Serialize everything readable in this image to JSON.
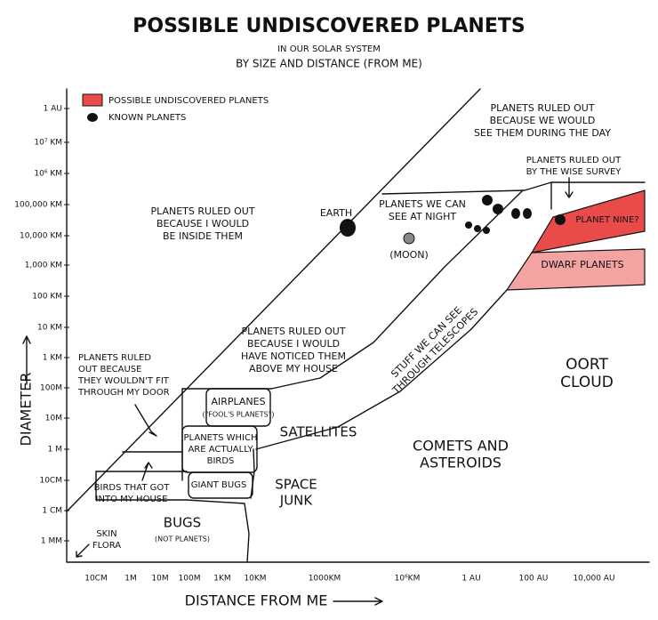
{
  "title": "POSSIBLE UNDISCOVERED PLANETS",
  "subtitle": [
    "IN OUR SOLAR SYSTEM",
    "BY SIZE AND DISTANCE (FROM ME)"
  ],
  "legend": [
    "POSSIBLE UNDISCOVERED PLANETS",
    "KNOWN PLANETS"
  ],
  "y_axis": {
    "title": "DIAMETER",
    "ticks": [
      "1 AU",
      "10⁷ KM",
      "10⁶ KM",
      "100,000 KM",
      "10,000 KM",
      "1,000 KM",
      "100 KM",
      "10 KM",
      "1 KM",
      "100M",
      "10M",
      "1 M",
      "10CM",
      "1 CM",
      "1 MM"
    ]
  },
  "x_axis": {
    "title": "DISTANCE FROM ME",
    "ticks": [
      "10CM",
      "1M",
      "10M",
      "100M",
      "1KM",
      "10KM",
      "1000KM",
      "10⁶KM",
      "1 AU",
      "100 AU",
      "10,000 AU"
    ]
  },
  "regions": [
    [
      "PLANETS RULED OUT",
      "BECAUSE I WOULD",
      "BE INSIDE THEM"
    ],
    [
      "EARTH"
    ],
    [
      "PLANETS WE CAN",
      "SEE AT NIGHT"
    ],
    [
      "(MOON)"
    ],
    [
      "PLANETS RULED OUT",
      "BECAUSE WE WOULD",
      "SEE THEM DURING THE DAY"
    ],
    [
      "PLANETS RULED OUT",
      "BY THE WISE SURVEY"
    ],
    [
      "PLANET NINE?"
    ],
    [
      "DWARF PLANETS"
    ],
    [
      "PLANETS RULED OUT",
      "BECAUSE I WOULD",
      "HAVE NOTICED THEM",
      "ABOVE MY HOUSE"
    ],
    [
      "STUFF WE CAN SEE",
      "THROUGH TELESCOPES"
    ],
    [
      "OORT",
      "CLOUD"
    ],
    [
      "PLANETS RULED",
      "OUT BECAUSE",
      "THEY WOULDN'T FIT",
      "THROUGH MY DOOR"
    ],
    [
      "AIRPLANES",
      "(\"FOOL'S PLANETS\")"
    ],
    [
      "PLANETS WHICH",
      "ARE ACTUALLY",
      "BIRDS"
    ],
    [
      "SATELLITES"
    ],
    [
      "COMETS AND",
      "ASTEROIDS"
    ],
    [
      "GIANT BUGS"
    ],
    [
      "SPACE",
      "JUNK"
    ],
    [
      "BIRDS THAT GOT",
      "INTO MY HOUSE"
    ],
    [
      "BUGS",
      "(NOT PLANETS)"
    ],
    [
      "SKIN",
      "FLORA"
    ]
  ]
}
